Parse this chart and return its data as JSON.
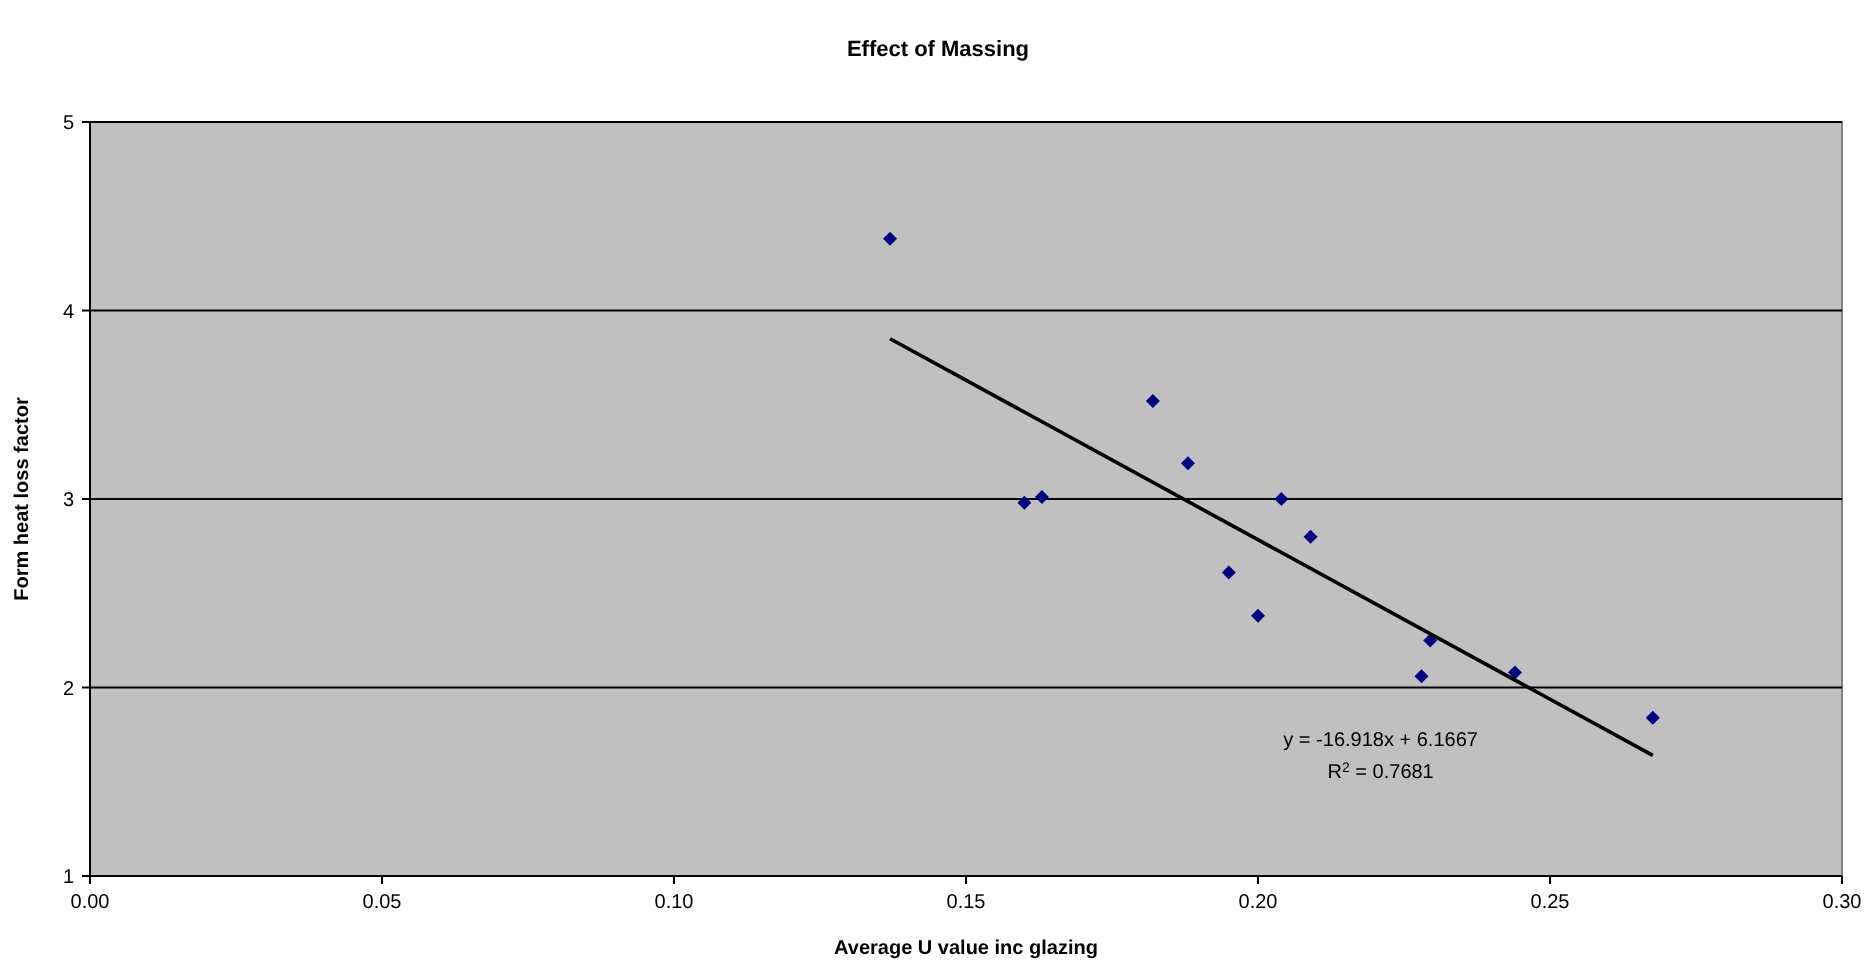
{
  "chart_data": {
    "type": "scatter",
    "title": "Effect of Massing",
    "xlabel": "Average U value inc glazing",
    "ylabel": "Form heat loss factor",
    "xlim": [
      0,
      0.3
    ],
    "xticks": [
      {
        "value": 0,
        "label": "0.00"
      },
      {
        "value": 0.05,
        "label": "0.05"
      },
      {
        "value": 0.1,
        "label": "0.10"
      },
      {
        "value": 0.15,
        "label": "0.15"
      },
      {
        "value": 0.2,
        "label": "0.20"
      },
      {
        "value": 0.25,
        "label": "0.25"
      },
      {
        "value": 0.3,
        "label": "0.30"
      }
    ],
    "ylim": [
      1,
      5
    ],
    "yticks": [
      1,
      2,
      3,
      4,
      5
    ],
    "grid": "y",
    "series": [
      {
        "color": "#000080",
        "marker": "diamond",
        "x": [
          0.137,
          0.16,
          0.163,
          0.182,
          0.188,
          0.204,
          0.209,
          0.195,
          0.2,
          0.228,
          0.2295,
          0.244,
          0.2676
        ],
        "values": [
          4.38,
          2.98,
          3.01,
          3.52,
          3.19,
          3.0,
          2.8,
          2.61,
          2.38,
          2.06,
          2.25,
          2.08,
          1.84
        ]
      },
      {
        "type": "line",
        "color": "#000000",
        "marker": "none",
        "line_style": "solid",
        "x": [
          0.137,
          0.2676
        ],
        "values": [
          3.85,
          1.64
        ]
      }
    ],
    "annotations": [
      "y = -16.918x + 6.1667",
      "R$^{2}$ = 0.7681"
    ]
  }
}
